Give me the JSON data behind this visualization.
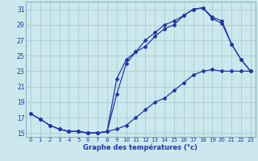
{
  "title": "Graphe des températures (°c)",
  "bg_color": "#cce8ec",
  "grid_color": "#aaccd4",
  "line_color": "#2233aa",
  "ylim": [
    14.5,
    32
  ],
  "xlim": [
    -0.5,
    23.5
  ],
  "yticks": [
    15,
    17,
    19,
    21,
    23,
    25,
    27,
    29,
    31
  ],
  "xticks": [
    0,
    1,
    2,
    3,
    4,
    5,
    6,
    7,
    8,
    9,
    10,
    11,
    12,
    13,
    14,
    15,
    16,
    17,
    18,
    19,
    20,
    21,
    22,
    23
  ],
  "line1_x": [
    0,
    1,
    2,
    3,
    4,
    5,
    6,
    7,
    8,
    9,
    10,
    11,
    12,
    13,
    14,
    15,
    16,
    17,
    18,
    19,
    20,
    21,
    22,
    23
  ],
  "line1_y": [
    17.5,
    16.8,
    16.0,
    15.5,
    15.2,
    15.2,
    15.0,
    15.0,
    15.2,
    15.5,
    16.0,
    17.0,
    18.0,
    19.0,
    19.5,
    20.5,
    21.5,
    22.5,
    23.0,
    23.2,
    23.0,
    23.0,
    23.0,
    23.0
  ],
  "line2_x": [
    0,
    1,
    2,
    3,
    4,
    5,
    6,
    7,
    8,
    9,
    10,
    11,
    12,
    13,
    14,
    15,
    16,
    17,
    18,
    19,
    20,
    21,
    22,
    23
  ],
  "line2_y": [
    17.5,
    16.8,
    16.0,
    15.5,
    15.2,
    15.2,
    15.0,
    15.0,
    15.2,
    22.0,
    24.5,
    25.5,
    27.0,
    28.0,
    29.0,
    29.5,
    30.2,
    31.0,
    31.2,
    30.0,
    29.5,
    26.5,
    24.5,
    23.0
  ],
  "line3_x": [
    3,
    4,
    5,
    6,
    7,
    8,
    9,
    10,
    11,
    12,
    13,
    14,
    15,
    16,
    17,
    18,
    19,
    20,
    21,
    22,
    23
  ],
  "line3_y": [
    15.5,
    15.2,
    15.2,
    15.0,
    15.0,
    15.2,
    20.0,
    24.0,
    25.5,
    26.2,
    27.5,
    28.5,
    29.0,
    30.2,
    31.0,
    31.2,
    29.8,
    29.2,
    26.5,
    24.5,
    23.0
  ]
}
